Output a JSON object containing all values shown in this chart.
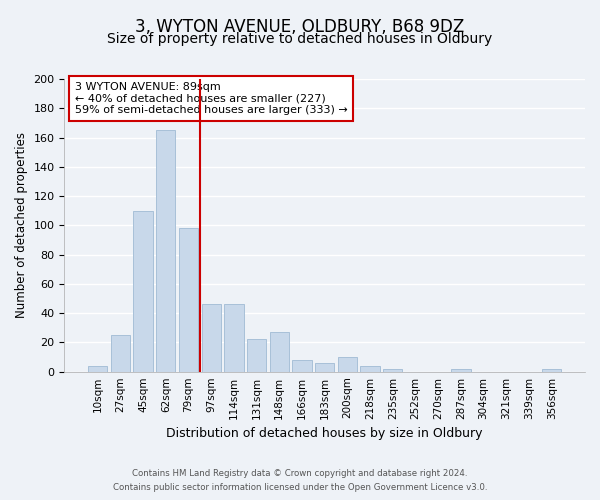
{
  "title": "3, WYTON AVENUE, OLDBURY, B68 9DZ",
  "subtitle": "Size of property relative to detached houses in Oldbury",
  "xlabel": "Distribution of detached houses by size in Oldbury",
  "ylabel": "Number of detached properties",
  "bar_labels": [
    "10sqm",
    "27sqm",
    "45sqm",
    "62sqm",
    "79sqm",
    "97sqm",
    "114sqm",
    "131sqm",
    "148sqm",
    "166sqm",
    "183sqm",
    "200sqm",
    "218sqm",
    "235sqm",
    "252sqm",
    "270sqm",
    "287sqm",
    "304sqm",
    "321sqm",
    "339sqm",
    "356sqm"
  ],
  "bar_values": [
    4,
    25,
    110,
    165,
    98,
    46,
    46,
    22,
    27,
    8,
    6,
    10,
    4,
    2,
    0,
    0,
    2,
    0,
    0,
    0,
    2
  ],
  "bar_color": "#c8d8ea",
  "bar_edge_color": "#a8c0d8",
  "vline_x": 4.5,
  "vline_color": "#cc0000",
  "ylim": [
    0,
    200
  ],
  "yticks": [
    0,
    20,
    40,
    60,
    80,
    100,
    120,
    140,
    160,
    180,
    200
  ],
  "annotation_title": "3 WYTON AVENUE: 89sqm",
  "annotation_line1": "← 40% of detached houses are smaller (227)",
  "annotation_line2": "59% of semi-detached houses are larger (333) →",
  "annotation_box_color": "#ffffff",
  "annotation_border_color": "#cc0000",
  "footer_line1": "Contains HM Land Registry data © Crown copyright and database right 2024.",
  "footer_line2": "Contains public sector information licensed under the Open Government Licence v3.0.",
  "background_color": "#eef2f7",
  "grid_color": "#ffffff",
  "title_fontsize": 12,
  "subtitle_fontsize": 10
}
